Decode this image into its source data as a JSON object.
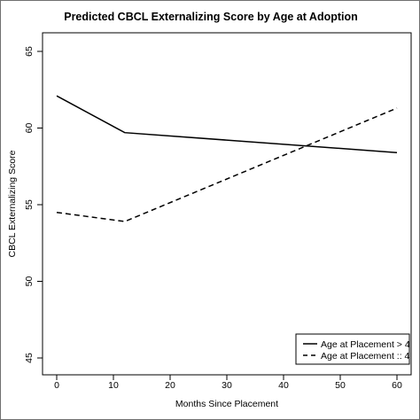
{
  "chart_data": {
    "type": "line",
    "title": "Predicted CBCL Externalizing Score by Age at Adoption",
    "xlabel": "Months Since Placement",
    "ylabel": "CBCL Externalizing Score",
    "xlim": [
      0,
      60
    ],
    "ylim": [
      45,
      65
    ],
    "xticks": [
      0,
      10,
      20,
      30,
      40,
      50,
      60
    ],
    "yticks": [
      45,
      50,
      55,
      60,
      65
    ],
    "grid": false,
    "legend_position": "bottom-right",
    "series": [
      {
        "name": "Age at Placement > 4",
        "style": "solid",
        "color": "#000000",
        "x": [
          0,
          12,
          60
        ],
        "y": [
          62.1,
          59.7,
          58.4
        ]
      },
      {
        "name": "Age at Placement :: 4",
        "style": "dashed",
        "color": "#000000",
        "x": [
          0,
          12,
          60
        ],
        "y": [
          54.5,
          53.9,
          61.3
        ]
      }
    ]
  }
}
